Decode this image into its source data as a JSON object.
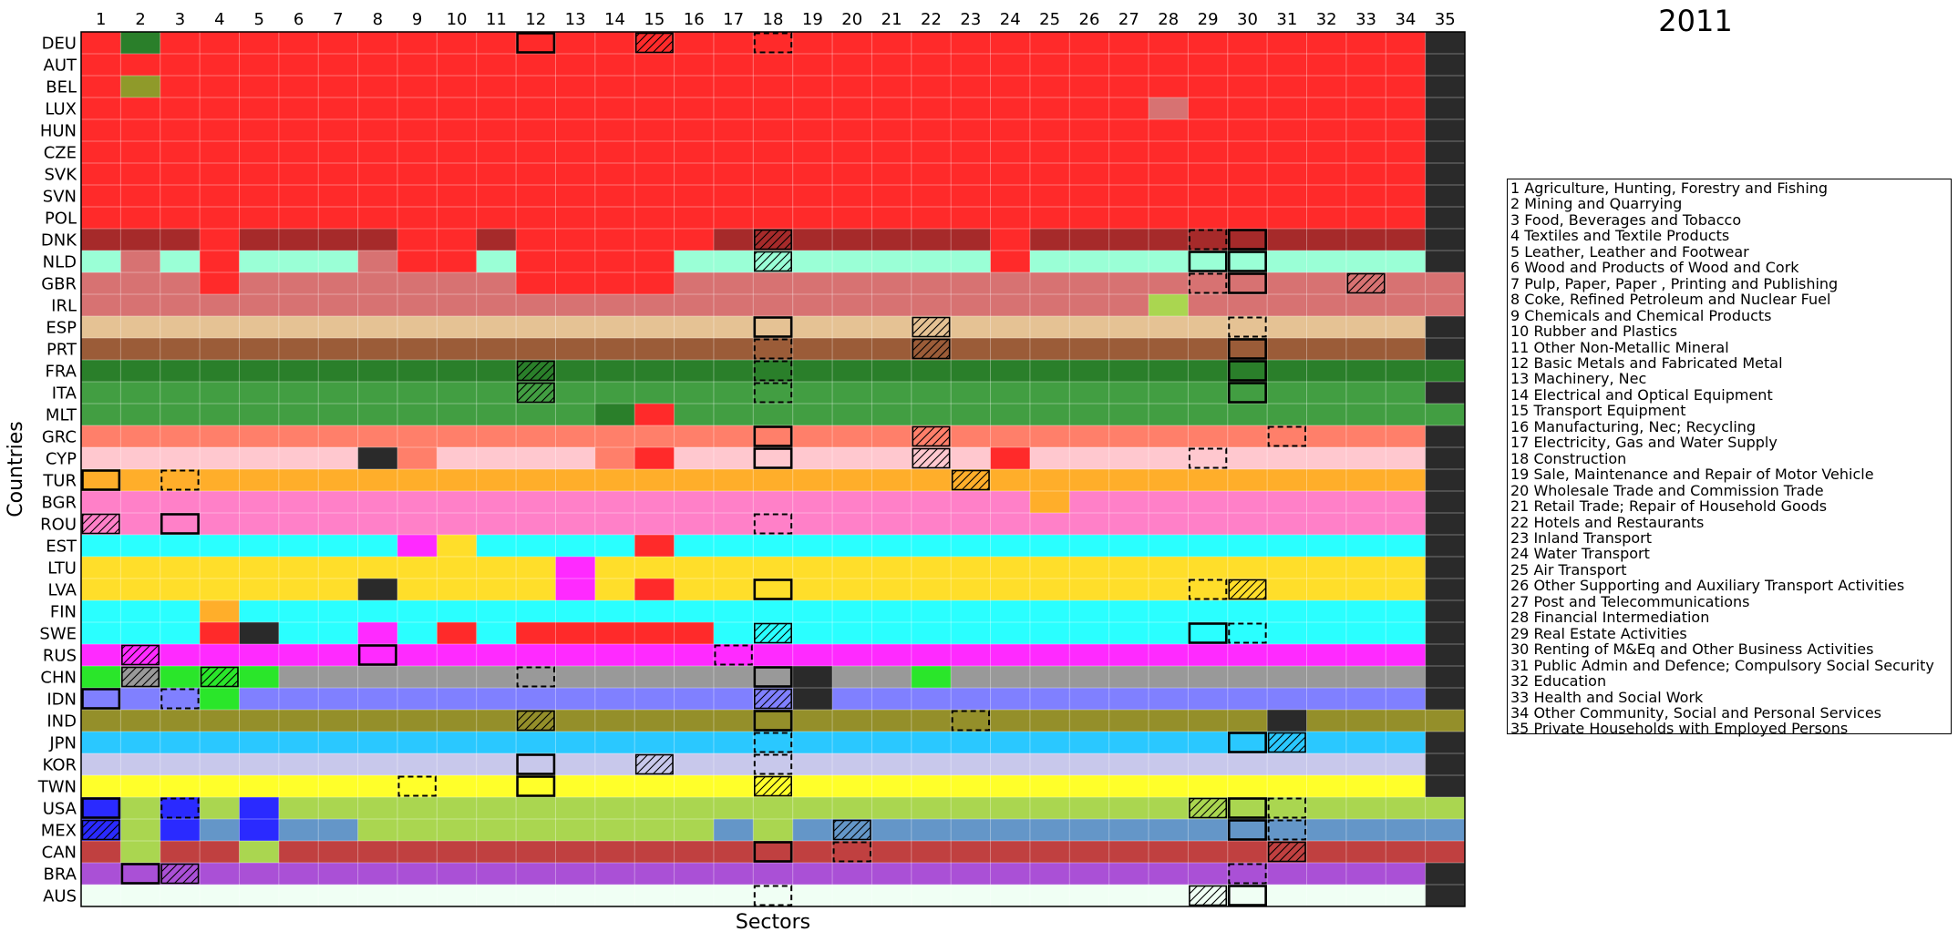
{
  "title": "2011",
  "chart_data": {
    "type": "heatmap",
    "title": "2011",
    "xlabel": "Sectors",
    "ylabel": "Countries",
    "sectors": [
      "1",
      "2",
      "3",
      "4",
      "5",
      "6",
      "7",
      "8",
      "9",
      "10",
      "11",
      "12",
      "13",
      "14",
      "15",
      "16",
      "17",
      "18",
      "19",
      "20",
      "21",
      "22",
      "23",
      "24",
      "25",
      "26",
      "27",
      "28",
      "29",
      "30",
      "31",
      "32",
      "33",
      "34",
      "35"
    ],
    "countries": [
      "DEU",
      "AUT",
      "BEL",
      "LUX",
      "HUN",
      "CZE",
      "SVK",
      "SVN",
      "POL",
      "DNK",
      "NLD",
      "GBR",
      "IRL",
      "ESP",
      "PRT",
      "FRA",
      "ITA",
      "MLT",
      "GRC",
      "CYP",
      "TUR",
      "BGR",
      "ROU",
      "EST",
      "LTU",
      "LVA",
      "FIN",
      "SWE",
      "RUS",
      "CHN",
      "IDN",
      "IND",
      "JPN",
      "KOR",
      "TWN",
      "USA",
      "MEX",
      "CAN",
      "BRA",
      "AUS"
    ],
    "colors": {
      "DEU": "#ff2a2a",
      "DNK": "#a62a2a",
      "NLD": "#9affd6",
      "GBR": "#d77272",
      "ESP": "#e5c294",
      "PRT": "#9b5c38",
      "FRA": "#2a7f2a",
      "ITA": "#429e42",
      "GRC": "#ff7f6a",
      "CYP": "#ffc8cf",
      "TUR": "#ffae2a",
      "ROU": "#ff80c8",
      "EST": "#2affff",
      "LVA": "#ffde2a",
      "RUS": "#ff2aff",
      "CHN": "#999999",
      "IDN": "#8080ff",
      "IND": "#948f2a",
      "JPN": "#2ac8ff",
      "KOR": "#c8c8eb",
      "TWN": "#ffff2a",
      "USA": "#aad650",
      "MEX": "#6496c8",
      "CAN": "#c04040",
      "BRA": "#aa50d6",
      "AUS": "#f0fff4",
      "ROW": "#2a2a2a",
      "MGR": "#2ae62a",
      "BLU": "#2a2aff",
      "OLV": "#8f9a2a"
    },
    "rows": [
      {
        "base": "DEU",
        "last": "ROW",
        "cells": {
          "2": "FRA"
        }
      },
      {
        "base": "DEU",
        "last": "ROW",
        "cells": {}
      },
      {
        "base": "DEU",
        "last": "ROW",
        "cells": {
          "2": "OLV"
        }
      },
      {
        "base": "DEU",
        "last": "ROW",
        "cells": {
          "28": "GBR"
        }
      },
      {
        "base": "DEU",
        "last": "ROW",
        "cells": {}
      },
      {
        "base": "DEU",
        "last": "ROW",
        "cells": {}
      },
      {
        "base": "DEU",
        "last": "ROW",
        "cells": {}
      },
      {
        "base": "DEU",
        "last": "ROW",
        "cells": {}
      },
      {
        "base": "DEU",
        "last": "ROW",
        "cells": {}
      },
      {
        "base": "DNK",
        "last": "ROW",
        "cells": {
          "4": "DEU",
          "9": "DEU",
          "10": "DEU",
          "12": "DEU",
          "13": "DEU",
          "14": "DEU",
          "15": "DEU",
          "16": "DEU",
          "24": "DEU"
        }
      },
      {
        "base": "NLD",
        "last": "ROW",
        "cells": {
          "2": "GBR",
          "4": "DEU",
          "8": "GBR",
          "9": "DEU",
          "10": "DEU",
          "12": "DEU",
          "13": "DEU",
          "14": "DEU",
          "15": "DEU",
          "24": "DEU"
        }
      },
      {
        "base": "GBR",
        "last": "GBR",
        "cells": {
          "4": "DEU",
          "12": "DEU",
          "13": "DEU",
          "14": "DEU",
          "15": "DEU"
        }
      },
      {
        "base": "GBR",
        "last": "GBR",
        "cells": {
          "28": "USA"
        }
      },
      {
        "base": "ESP",
        "last": "ROW",
        "cells": {}
      },
      {
        "base": "PRT",
        "last": "ROW",
        "cells": {}
      },
      {
        "base": "FRA",
        "last": "FRA",
        "cells": {}
      },
      {
        "base": "ITA",
        "last": "ROW",
        "cells": {}
      },
      {
        "base": "ITA",
        "last": "ITA",
        "cells": {
          "14": "FRA",
          "15": "DEU"
        }
      },
      {
        "base": "GRC",
        "last": "ROW",
        "cells": {}
      },
      {
        "base": "CYP",
        "last": "ROW",
        "cells": {
          "8": "ROW",
          "9": "GRC",
          "14": "GRC",
          "15": "DEU",
          "24": "DEU"
        }
      },
      {
        "base": "TUR",
        "last": "ROW",
        "cells": {}
      },
      {
        "base": "ROU",
        "last": "ROW",
        "cells": {
          "25": "TUR"
        }
      },
      {
        "base": "ROU",
        "last": "ROW",
        "cells": {}
      },
      {
        "base": "EST",
        "last": "ROW",
        "cells": {
          "9": "RUS",
          "10": "LVA",
          "15": "DEU"
        }
      },
      {
        "base": "LVA",
        "last": "ROW",
        "cells": {
          "13": "RUS"
        }
      },
      {
        "base": "LVA",
        "last": "ROW",
        "cells": {
          "8": "ROW",
          "13": "RUS",
          "15": "DEU"
        }
      },
      {
        "base": "EST",
        "last": "ROW",
        "cells": {
          "4": "TUR"
        }
      },
      {
        "base": "EST",
        "last": "ROW",
        "cells": {
          "4": "DEU",
          "5": "ROW",
          "8": "RUS",
          "10": "DEU",
          "12": "DEU",
          "13": "DEU",
          "14": "DEU",
          "15": "DEU",
          "16": "DEU"
        }
      },
      {
        "base": "RUS",
        "last": "ROW",
        "cells": {}
      },
      {
        "base": "CHN",
        "last": "ROW",
        "cells": {
          "1": "MGR",
          "3": "MGR",
          "4": "MGR",
          "5": "MGR",
          "19": "ROW",
          "22": "MGR"
        }
      },
      {
        "base": "IDN",
        "last": "ROW",
        "cells": {
          "4": "MGR",
          "19": "ROW"
        }
      },
      {
        "base": "IND",
        "last": "IND",
        "cells": {
          "31": "ROW"
        }
      },
      {
        "base": "JPN",
        "last": "ROW",
        "cells": {}
      },
      {
        "base": "KOR",
        "last": "ROW",
        "cells": {}
      },
      {
        "base": "TWN",
        "last": "ROW",
        "cells": {}
      },
      {
        "base": "USA",
        "last": "USA",
        "cells": {
          "1": "BLU",
          "3": "BLU",
          "5": "BLU"
        }
      },
      {
        "base": "MEX",
        "last": "MEX",
        "cells": {
          "1": "BLU",
          "3": "BLU",
          "4": "MEX",
          "5": "BLU",
          "6": "MEX",
          "7": "MEX",
          "17": "MEX",
          "19": "MEX",
          "20": "MEX",
          "21": "MEX",
          "22": "MEX",
          "23": "MEX",
          "24": "MEX",
          "25": "MEX",
          "26": "MEX",
          "27": "MEX",
          "28": "MEX",
          "29": "MEX",
          "30": "MEX",
          "31": "MEX",
          "32": "MEX",
          "33": "MEX",
          "34": "MEX",
          "2": "USA",
          "8": "USA",
          "9": "USA",
          "10": "USA",
          "11": "USA",
          "12": "USA",
          "13": "USA",
          "14": "USA",
          "15": "USA",
          "16": "USA",
          "18": "USA"
        }
      },
      {
        "base": "CAN",
        "last": "CAN",
        "cells": {
          "2": "USA",
          "5": "USA"
        }
      },
      {
        "base": "BRA",
        "last": "ROW",
        "cells": {}
      },
      {
        "base": "AUS",
        "last": "ROW",
        "cells": {}
      }
    ],
    "markers": [
      {
        "r": 0,
        "c": 12,
        "s": "solid"
      },
      {
        "r": 0,
        "c": 15,
        "s": "hatch"
      },
      {
        "r": 0,
        "c": 18,
        "s": "dashed"
      },
      {
        "r": 9,
        "c": 18,
        "s": "hatch"
      },
      {
        "r": 9,
        "c": 29,
        "s": "dashed"
      },
      {
        "r": 9,
        "c": 30,
        "s": "solid"
      },
      {
        "r": 10,
        "c": 18,
        "s": "hatch"
      },
      {
        "r": 10,
        "c": 29,
        "s": "solid"
      },
      {
        "r": 10,
        "c": 30,
        "s": "solid"
      },
      {
        "r": 11,
        "c": 29,
        "s": "dashed"
      },
      {
        "r": 11,
        "c": 30,
        "s": "solid"
      },
      {
        "r": 11,
        "c": 33,
        "s": "hatch"
      },
      {
        "r": 13,
        "c": 18,
        "s": "solid"
      },
      {
        "r": 13,
        "c": 22,
        "s": "hatch"
      },
      {
        "r": 13,
        "c": 30,
        "s": "dashed"
      },
      {
        "r": 14,
        "c": 18,
        "s": "dashed"
      },
      {
        "r": 14,
        "c": 22,
        "s": "hatch"
      },
      {
        "r": 14,
        "c": 30,
        "s": "solid"
      },
      {
        "r": 15,
        "c": 12,
        "s": "hatch"
      },
      {
        "r": 15,
        "c": 18,
        "s": "dashed"
      },
      {
        "r": 15,
        "c": 30,
        "s": "solid"
      },
      {
        "r": 16,
        "c": 12,
        "s": "hatch"
      },
      {
        "r": 16,
        "c": 18,
        "s": "dashed"
      },
      {
        "r": 16,
        "c": 30,
        "s": "solid"
      },
      {
        "r": 18,
        "c": 18,
        "s": "solid"
      },
      {
        "r": 18,
        "c": 22,
        "s": "hatch"
      },
      {
        "r": 18,
        "c": 31,
        "s": "dashed"
      },
      {
        "r": 19,
        "c": 18,
        "s": "solid"
      },
      {
        "r": 19,
        "c": 22,
        "s": "hatch"
      },
      {
        "r": 19,
        "c": 29,
        "s": "dashed"
      },
      {
        "r": 20,
        "c": 1,
        "s": "solid"
      },
      {
        "r": 20,
        "c": 3,
        "s": "dashed"
      },
      {
        "r": 20,
        "c": 23,
        "s": "hatch"
      },
      {
        "r": 22,
        "c": 1,
        "s": "hatch"
      },
      {
        "r": 22,
        "c": 3,
        "s": "solid"
      },
      {
        "r": 22,
        "c": 18,
        "s": "dashed"
      },
      {
        "r": 25,
        "c": 18,
        "s": "solid"
      },
      {
        "r": 25,
        "c": 29,
        "s": "dashed"
      },
      {
        "r": 25,
        "c": 30,
        "s": "hatch"
      },
      {
        "r": 27,
        "c": 18,
        "s": "hatch"
      },
      {
        "r": 27,
        "c": 29,
        "s": "solid"
      },
      {
        "r": 27,
        "c": 30,
        "s": "dashed"
      },
      {
        "r": 28,
        "c": 2,
        "s": "hatch"
      },
      {
        "r": 28,
        "c": 8,
        "s": "solid"
      },
      {
        "r": 28,
        "c": 17,
        "s": "dashed"
      },
      {
        "r": 29,
        "c": 2,
        "s": "hatch"
      },
      {
        "r": 29,
        "c": 4,
        "s": "hatch"
      },
      {
        "r": 29,
        "c": 12,
        "s": "dashed"
      },
      {
        "r": 29,
        "c": 18,
        "s": "solid"
      },
      {
        "r": 30,
        "c": 1,
        "s": "solid"
      },
      {
        "r": 30,
        "c": 3,
        "s": "dashed"
      },
      {
        "r": 30,
        "c": 18,
        "s": "hatch"
      },
      {
        "r": 31,
        "c": 12,
        "s": "hatch"
      },
      {
        "r": 31,
        "c": 18,
        "s": "solid"
      },
      {
        "r": 31,
        "c": 23,
        "s": "dashed"
      },
      {
        "r": 32,
        "c": 18,
        "s": "dashed"
      },
      {
        "r": 32,
        "c": 30,
        "s": "solid"
      },
      {
        "r": 32,
        "c": 31,
        "s": "hatch"
      },
      {
        "r": 33,
        "c": 12,
        "s": "solid"
      },
      {
        "r": 33,
        "c": 15,
        "s": "hatch"
      },
      {
        "r": 33,
        "c": 18,
        "s": "dashed"
      },
      {
        "r": 34,
        "c": 9,
        "s": "dashed"
      },
      {
        "r": 34,
        "c": 12,
        "s": "solid"
      },
      {
        "r": 34,
        "c": 18,
        "s": "hatch"
      },
      {
        "r": 35,
        "c": 1,
        "s": "solid"
      },
      {
        "r": 35,
        "c": 3,
        "s": "dashed"
      },
      {
        "r": 35,
        "c": 29,
        "s": "hatch"
      },
      {
        "r": 35,
        "c": 30,
        "s": "solid"
      },
      {
        "r": 35,
        "c": 31,
        "s": "dashed"
      },
      {
        "r": 36,
        "c": 1,
        "s": "hatch"
      },
      {
        "r": 36,
        "c": 20,
        "s": "hatch"
      },
      {
        "r": 36,
        "c": 30,
        "s": "solid"
      },
      {
        "r": 36,
        "c": 31,
        "s": "dashed"
      },
      {
        "r": 37,
        "c": 18,
        "s": "solid"
      },
      {
        "r": 37,
        "c": 20,
        "s": "dashed"
      },
      {
        "r": 37,
        "c": 31,
        "s": "hatch"
      },
      {
        "r": 38,
        "c": 2,
        "s": "solid"
      },
      {
        "r": 38,
        "c": 3,
        "s": "hatch"
      },
      {
        "r": 38,
        "c": 30,
        "s": "dashed"
      },
      {
        "r": 39,
        "c": 18,
        "s": "dashed"
      },
      {
        "r": 39,
        "c": 29,
        "s": "hatch"
      },
      {
        "r": 39,
        "c": 30,
        "s": "solid"
      }
    ],
    "grid": true
  },
  "legend": [
    "1 Agriculture, Hunting, Forestry and Fishing",
    "2 Mining and Quarrying",
    "3 Food, Beverages and Tobacco",
    "4 Textiles and Textile Products",
    "5 Leather, Leather and Footwear",
    "6 Wood and Products of Wood and Cork",
    "7 Pulp, Paper, Paper , Printing and Publishing",
    "8 Coke, Refined Petroleum and Nuclear Fuel",
    "9 Chemicals and Chemical Products",
    "10 Rubber and Plastics",
    "11 Other Non-Metallic Mineral",
    "12 Basic Metals and Fabricated Metal",
    "13 Machinery, Nec",
    "14 Electrical and Optical Equipment",
    "15 Transport Equipment",
    "16 Manufacturing, Nec; Recycling",
    "17 Electricity, Gas and Water Supply",
    "18 Construction",
    "19 Sale, Maintenance and Repair of Motor Vehicle",
    "20 Wholesale Trade and Commission Trade",
    "21 Retail Trade; Repair of Household Goods",
    "22 Hotels and Restaurants",
    "23 Inland Transport",
    "24 Water Transport",
    "25 Air Transport",
    "26 Other Supporting and Auxiliary Transport Activities",
    "27 Post and Telecommunications",
    "28 Financial Intermediation",
    "29 Real Estate Activities",
    "30 Renting of M&Eq and Other Business Activities",
    "31 Public Admin and Defence; Compulsory Social Security",
    "32 Education",
    "33 Health and Social Work",
    "34 Other Community, Social and Personal Services",
    "35 Private Households with Employed Persons"
  ]
}
